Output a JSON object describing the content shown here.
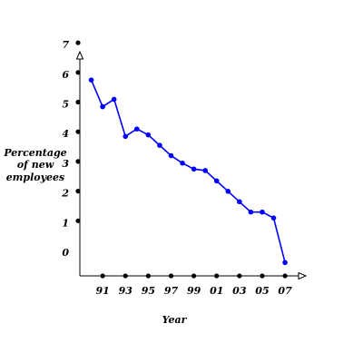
{
  "chart_data": {
    "type": "line",
    "title": "",
    "xlabel": "Year",
    "ylabel_lines": [
      "Percentage",
      "of new",
      "employees"
    ],
    "x_tick_labels": [
      "91",
      "93",
      "95",
      "97",
      "99",
      "01",
      "03",
      "05",
      "07"
    ],
    "x_tick_positions": [
      1991,
      1993,
      1995,
      1997,
      1999,
      2001,
      2003,
      2005,
      2007
    ],
    "y_tick_labels": [
      "0",
      "1",
      "2",
      "3",
      "4",
      "5",
      "6",
      "7"
    ],
    "xlim": [
      1989,
      2008
    ],
    "ylim": [
      0,
      7.5
    ],
    "grid": false,
    "series": [
      {
        "x": [
          1990,
          1991,
          1992,
          1993,
          1994,
          1995,
          1996,
          1997,
          1998,
          1999,
          2000,
          2001,
          2002,
          2003,
          2004,
          2005,
          2006,
          2007
        ],
        "values": [
          6.6,
          5.7,
          5.95,
          4.7,
          4.95,
          4.75,
          4.4,
          4.05,
          3.8,
          3.6,
          3.55,
          3.2,
          2.85,
          2.5,
          2.15,
          2.15,
          1.95,
          0.45
        ]
      }
    ],
    "colors": {
      "line": "#0000ff",
      "points": "#0000ff",
      "axis": "#000000",
      "tick_dots": "#000000"
    }
  }
}
